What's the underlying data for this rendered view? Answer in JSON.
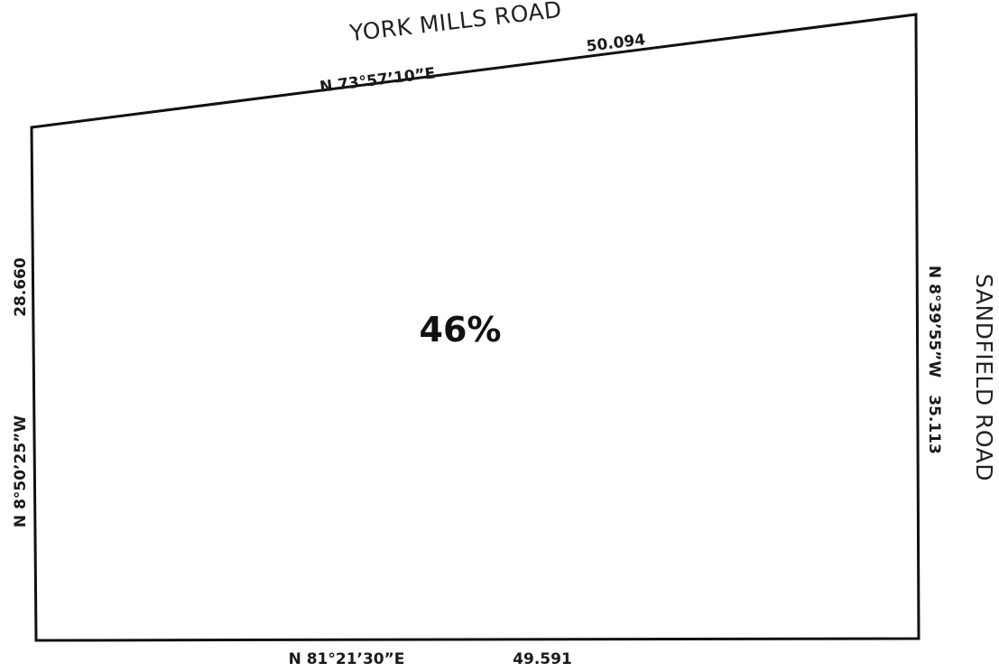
{
  "roads": {
    "north": "YORK MILLS ROAD",
    "east": "SANDFIELD ROAD"
  },
  "boundaries": {
    "north": {
      "bearing": "N 73°57’10”E",
      "distance": "50.094"
    },
    "east": {
      "bearing": "N 8°39’55”W",
      "distance": "35.113"
    },
    "south": {
      "bearing": "N 81°21’30”E",
      "distance": "49.591"
    },
    "west": {
      "bearing": "N 8°50’25”W",
      "distance": "28.660"
    }
  },
  "coverage": "46%",
  "colors": {
    "line": "#111111",
    "text": "#1a1a1a",
    "background": "#ffffff"
  }
}
